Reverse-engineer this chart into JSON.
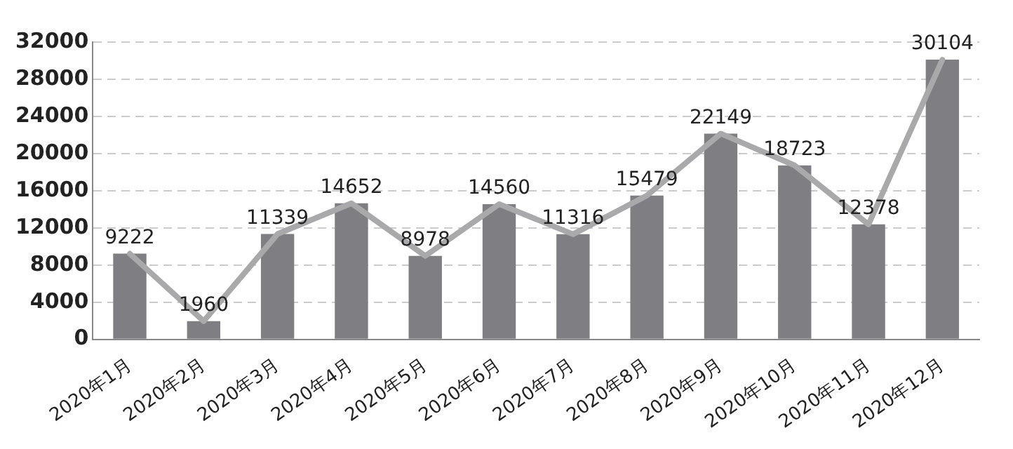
{
  "chart_data": {
    "type": "bar",
    "categories": [
      "2020年1月",
      "2020年2月",
      "2020年3月",
      "2020年4月",
      "2020年5月",
      "2020年6月",
      "2020年7月",
      "2020年8月",
      "2020年9月",
      "2020年10月",
      "2020年11月",
      "2020年12月"
    ],
    "series": [
      {
        "color": "#7f7f83",
        "values": [
          9222,
          1960,
          11339,
          14652,
          8978,
          14560,
          11316,
          15479,
          22149,
          18723,
          12378,
          30104
        ]
      },
      {
        "type": "line",
        "color": "#a9a9ab",
        "values": [
          9222,
          1960,
          11339,
          14652,
          8978,
          14560,
          11316,
          15479,
          22149,
          18723,
          12378,
          30104
        ],
        "value_labels": [
          "9222",
          "1960",
          "11339",
          "14652",
          "8978",
          "14560",
          "11316",
          "15479",
          "22149",
          "18723",
          "12378",
          "30104"
        ]
      }
    ],
    "ylim": [
      0,
      32000
    ],
    "yticks": [
      0,
      4000,
      8000,
      12000,
      16000,
      20000,
      24000,
      28000,
      32000
    ],
    "grid": "y",
    "legend": false,
    "marker": "none",
    "line_style": "solid"
  }
}
